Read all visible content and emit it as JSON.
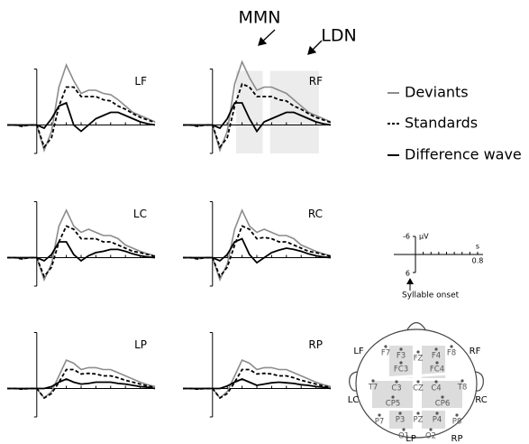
{
  "chart_data": [
    {
      "type": "line",
      "title": "LF",
      "xlim": [
        -0.2,
        0.8
      ],
      "ylim": [
        4.5,
        -10
      ],
      "x": [
        -0.2,
        -0.15,
        -0.1,
        -0.05,
        0,
        0.05,
        0.1,
        0.15,
        0.2,
        0.25,
        0.3,
        0.35,
        0.4,
        0.45,
        0.5,
        0.55,
        0.6,
        0.65,
        0.7,
        0.75,
        0.8
      ],
      "series": [
        {
          "name": "Deviants",
          "color": "#8c8c8c",
          "values": [
            0,
            0,
            0.2,
            0,
            0,
            4,
            1,
            -6,
            -9.5,
            -7,
            -5,
            -5.5,
            -5.5,
            -5,
            -4.8,
            -4,
            -3,
            -2,
            -1.5,
            -1,
            -0.5
          ]
        },
        {
          "name": "Standards",
          "color": "#000000",
          "values": [
            0,
            0,
            0.2,
            0,
            0,
            3.5,
            2,
            -3,
            -6,
            -6,
            -4.5,
            -4.5,
            -4.5,
            -4,
            -3.8,
            -3,
            -2.5,
            -1.8,
            -1.2,
            -0.8,
            -0.4
          ]
        },
        {
          "name": "Difference wave",
          "color": "#000000",
          "values": [
            0,
            0,
            0,
            0,
            0,
            0.5,
            -1,
            -3,
            -3.5,
            0,
            1,
            0,
            -1,
            -1.5,
            -2,
            -2,
            -1.5,
            -1,
            -0.5,
            -0.2,
            0
          ]
        }
      ]
    },
    {
      "type": "line",
      "title": "RF",
      "xlim": [
        -0.2,
        0.8
      ],
      "ylim": [
        4.5,
        -10
      ],
      "annotations": [
        "MMN",
        "LDN"
      ],
      "windows": [
        [
          0.16,
          0.34
        ],
        [
          0.39,
          0.72
        ]
      ],
      "x": [
        -0.2,
        -0.15,
        -0.1,
        -0.05,
        0,
        0.05,
        0.1,
        0.15,
        0.2,
        0.25,
        0.3,
        0.35,
        0.4,
        0.45,
        0.5,
        0.55,
        0.6,
        0.65,
        0.7,
        0.75,
        0.8
      ],
      "series": [
        {
          "color": "#8c8c8c",
          "values": [
            0,
            0,
            0.2,
            0,
            0,
            4,
            1,
            -6.5,
            -10,
            -7.5,
            -5.5,
            -6,
            -6,
            -5.5,
            -5,
            -4,
            -3,
            -2,
            -1.5,
            -1,
            -0.5
          ]
        },
        {
          "color": "#000000",
          "values": [
            0,
            0,
            0.2,
            0,
            0,
            3.5,
            2,
            -3,
            -6.5,
            -6,
            -4.5,
            -4.5,
            -4.5,
            -4,
            -3.8,
            -3,
            -2.5,
            -1.8,
            -1.2,
            -0.8,
            -0.4
          ]
        },
        {
          "color": "#000000",
          "values": [
            0,
            0,
            0,
            0,
            0,
            0.5,
            -1,
            -3.5,
            -3.5,
            -1,
            1,
            -0.5,
            -1,
            -1.5,
            -2,
            -2,
            -1.5,
            -1,
            -0.5,
            -0.2,
            0
          ]
        }
      ]
    },
    {
      "type": "line",
      "title": "LC",
      "xlim": [
        -0.2,
        0.8
      ],
      "ylim": [
        4.5,
        -10
      ],
      "x": [
        -0.2,
        -0.15,
        -0.1,
        -0.05,
        0,
        0.05,
        0.1,
        0.15,
        0.2,
        0.25,
        0.3,
        0.35,
        0.4,
        0.45,
        0.5,
        0.55,
        0.6,
        0.65,
        0.7,
        0.75,
        0.8
      ],
      "series": [
        {
          "color": "#8c8c8c",
          "values": [
            0,
            0,
            0.2,
            0,
            0,
            3.5,
            1,
            -5,
            -7.5,
            -5,
            -4,
            -4.5,
            -4,
            -3.5,
            -3.5,
            -3,
            -2,
            -1.5,
            -1,
            -0.6,
            -0.3
          ]
        },
        {
          "color": "#000000",
          "values": [
            0,
            0,
            0.2,
            0,
            0,
            3,
            1.5,
            -2.5,
            -5,
            -4.5,
            -3,
            -3,
            -3,
            -2.5,
            -2.5,
            -2,
            -1.5,
            -1,
            -0.8,
            -0.5,
            -0.2
          ]
        },
        {
          "color": "#000000",
          "values": [
            0,
            0,
            0,
            0,
            0,
            0.5,
            -0.5,
            -2.5,
            -2.5,
            -0.5,
            0.5,
            -0.3,
            -0.8,
            -1,
            -1.3,
            -1.3,
            -1,
            -0.6,
            -0.3,
            -0.1,
            0
          ]
        }
      ]
    },
    {
      "type": "line",
      "title": "RC",
      "xlim": [
        -0.2,
        0.8
      ],
      "ylim": [
        4.5,
        -10
      ],
      "x": [
        -0.2,
        -0.15,
        -0.1,
        -0.05,
        0,
        0.05,
        0.1,
        0.15,
        0.2,
        0.25,
        0.3,
        0.35,
        0.4,
        0.45,
        0.5,
        0.55,
        0.6,
        0.65,
        0.7,
        0.75,
        0.8
      ],
      "series": [
        {
          "color": "#8c8c8c",
          "values": [
            0,
            0,
            0.2,
            0,
            0,
            3.5,
            1,
            -4.5,
            -7.5,
            -5,
            -4,
            -4.5,
            -4,
            -3.5,
            -3.5,
            -3,
            -2,
            -1.5,
            -1,
            -0.6,
            -0.3
          ]
        },
        {
          "color": "#000000",
          "values": [
            0,
            0,
            0.2,
            0,
            0,
            3,
            1.5,
            -2,
            -5,
            -4.5,
            -3,
            -3.2,
            -3,
            -2.5,
            -2.5,
            -2,
            -1.5,
            -1,
            -0.8,
            -0.5,
            -0.2
          ]
        },
        {
          "color": "#000000",
          "values": [
            0,
            0,
            0,
            0,
            0,
            0.5,
            -0.5,
            -2.5,
            -3,
            -0.5,
            0.8,
            0,
            -0.8,
            -1.2,
            -1.5,
            -1.3,
            -1,
            -0.6,
            -0.3,
            -0.1,
            0
          ]
        }
      ]
    },
    {
      "type": "line",
      "title": "LP",
      "xlim": [
        -0.2,
        0.8
      ],
      "ylim": [
        4.5,
        -10
      ],
      "x": [
        -0.2,
        -0.15,
        -0.1,
        -0.05,
        0,
        0.05,
        0.1,
        0.15,
        0.2,
        0.25,
        0.3,
        0.35,
        0.4,
        0.45,
        0.5,
        0.55,
        0.6,
        0.65,
        0.7,
        0.75,
        0.8
      ],
      "series": [
        {
          "color": "#8c8c8c",
          "values": [
            0,
            0,
            0.1,
            0,
            0,
            1.5,
            0.5,
            -2,
            -4.5,
            -4,
            -3,
            -3.3,
            -3.3,
            -3,
            -3,
            -2.5,
            -2,
            -1.5,
            -1,
            -0.6,
            -0.3
          ]
        },
        {
          "color": "#000000",
          "values": [
            0,
            0,
            0.1,
            0,
            0,
            1.5,
            0.8,
            -1,
            -3,
            -3,
            -2.3,
            -2.4,
            -2.3,
            -2,
            -2,
            -1.7,
            -1.3,
            -1,
            -0.7,
            -0.4,
            -0.2
          ]
        },
        {
          "color": "#000000",
          "values": [
            0,
            0,
            0,
            0,
            0,
            0,
            -0.3,
            -1,
            -1.5,
            -1,
            -0.7,
            -0.8,
            -1,
            -1,
            -1,
            -0.8,
            -0.7,
            -0.5,
            -0.3,
            -0.2,
            0
          ]
        }
      ]
    },
    {
      "type": "line",
      "title": "RP",
      "xlim": [
        -0.2,
        0.8
      ],
      "ylim": [
        4.5,
        -10
      ],
      "x": [
        -0.2,
        -0.15,
        -0.1,
        -0.05,
        0,
        0.05,
        0.1,
        0.15,
        0.2,
        0.25,
        0.3,
        0.35,
        0.4,
        0.45,
        0.5,
        0.55,
        0.6,
        0.65,
        0.7,
        0.75,
        0.8
      ],
      "series": [
        {
          "color": "#8c8c8c",
          "values": [
            0,
            0,
            0.1,
            0,
            0,
            1.5,
            0.5,
            -2,
            -4.5,
            -4,
            -3,
            -3.3,
            -3.3,
            -3,
            -3,
            -2.5,
            -2,
            -1.5,
            -1,
            -0.6,
            -0.3
          ]
        },
        {
          "color": "#000000",
          "values": [
            0,
            0,
            0.1,
            0,
            0,
            1.5,
            0.8,
            -1,
            -3,
            -3,
            -2.3,
            -2.4,
            -2.3,
            -2,
            -2,
            -1.7,
            -1.3,
            -1,
            -0.7,
            -0.4,
            -0.2
          ]
        },
        {
          "color": "#000000",
          "values": [
            0,
            0,
            0,
            0,
            0,
            0,
            -0.4,
            -1,
            -1.5,
            -1,
            -0.5,
            -0.7,
            -0.9,
            -1,
            -0.9,
            -0.8,
            -0.6,
            -0.5,
            -0.3,
            -0.2,
            0
          ]
        }
      ]
    }
  ],
  "scale": {
    "yticks": [
      -6,
      6
    ],
    "y_unit": "µV",
    "x_unit": "s",
    "xtick": 0.8,
    "note": "Syllable onset"
  },
  "head_map": {
    "regions": [
      "LF",
      "RF",
      "LC",
      "RC",
      "LP",
      "RP"
    ],
    "electrodes": [
      "F7",
      "F3",
      "FZ",
      "F4",
      "F8",
      "FC3",
      "FC4",
      "T7",
      "C3",
      "CZ",
      "C4",
      "T8",
      "CP5",
      "CP6",
      "P7",
      "P3",
      "PZ",
      "P4",
      "P8",
      "O1",
      "O2"
    ]
  }
}
